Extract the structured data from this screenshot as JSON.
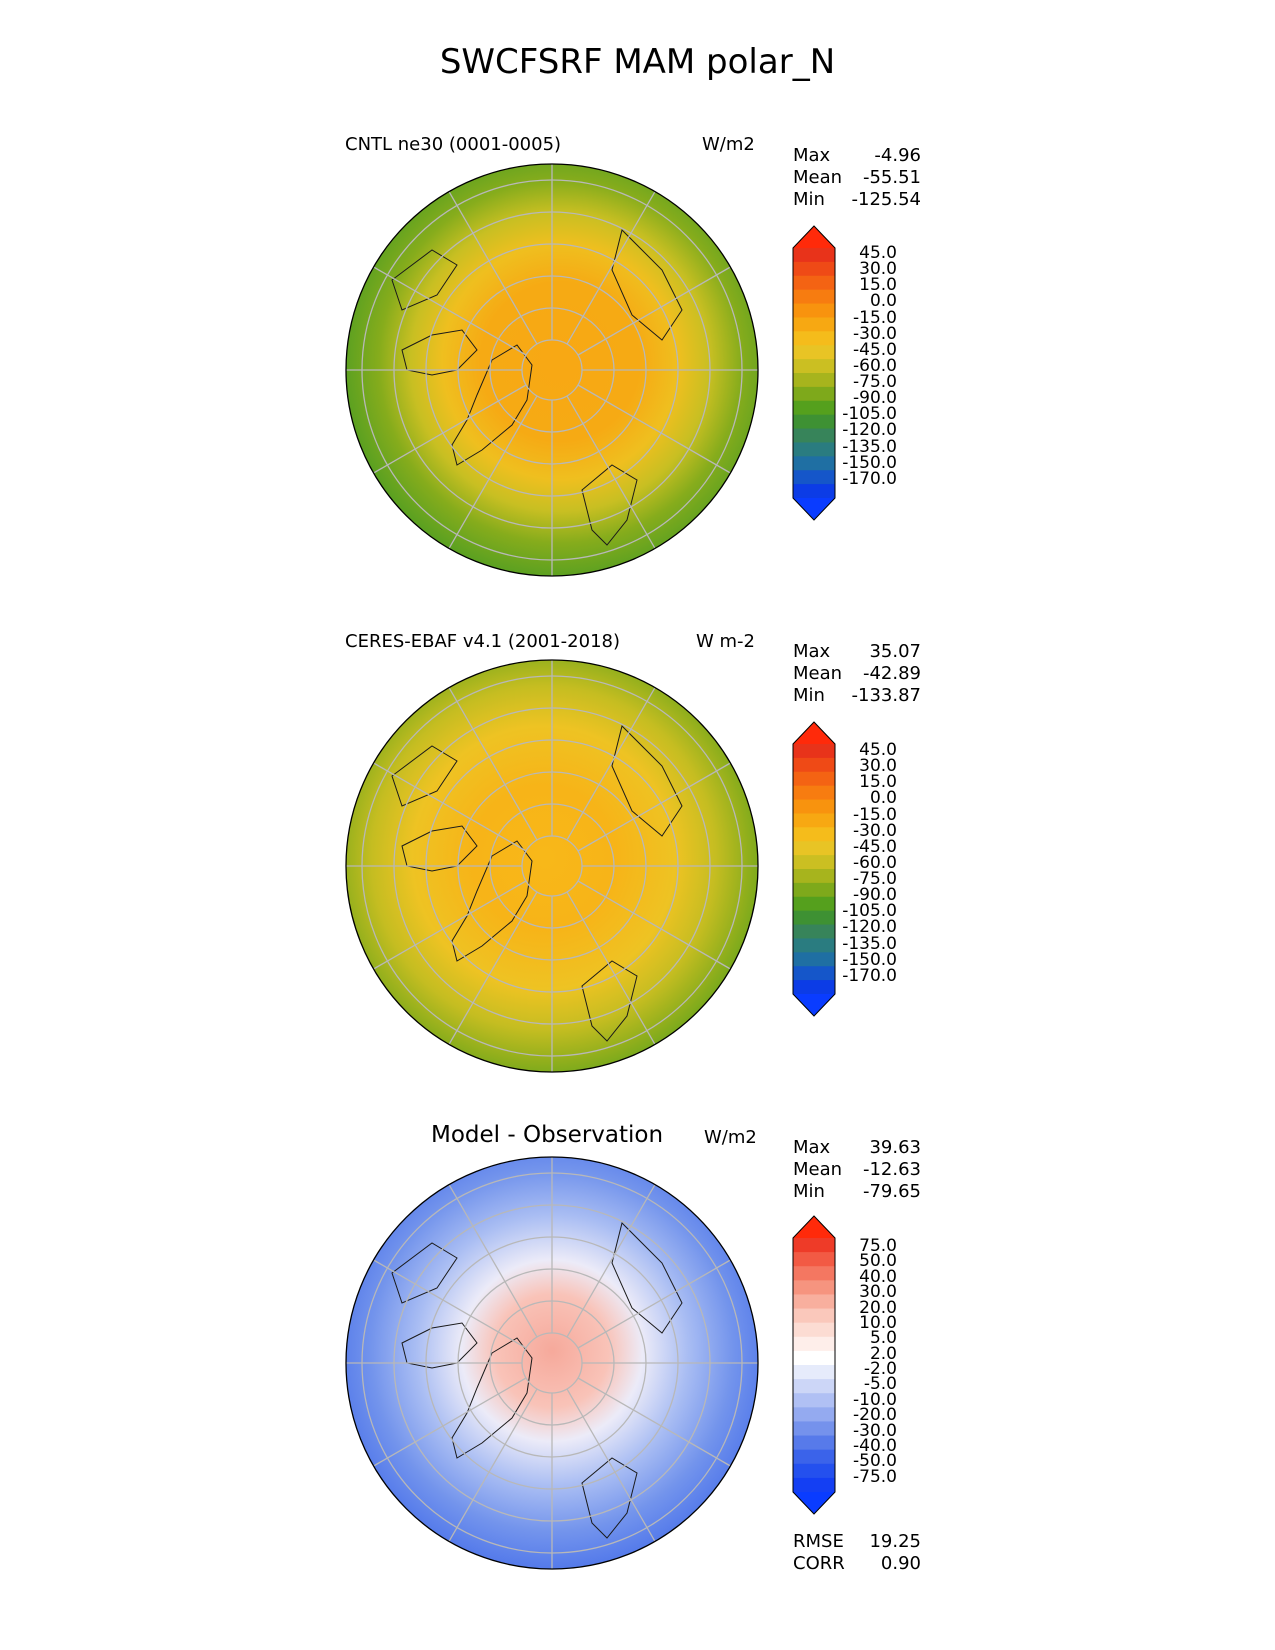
{
  "title": "SWCFSRF MAM polar_N",
  "panels": [
    {
      "title": "CNTL ne30 (0001-0005)",
      "units": "W/m2",
      "stats": [
        {
          "label": "Max",
          "value": "-4.96"
        },
        {
          "label": "Mean",
          "value": "-55.51"
        },
        {
          "label": "Min",
          "value": "-125.54"
        }
      ],
      "colorbar": {
        "labels": [
          "45.0",
          "30.0",
          "15.0",
          "0.0",
          "-15.0",
          "-30.0",
          "-45.0",
          "-60.0",
          "-75.0",
          "-90.0",
          "-105.0",
          "-120.0",
          "-135.0",
          "-150.0",
          "-170.0"
        ],
        "colors": [
          "#e8331a",
          "#ef4a16",
          "#f46313",
          "#f77c10",
          "#f8930e",
          "#f7a812",
          "#f5bc1b",
          "#e8c425",
          "#cbbf22",
          "#a7b41d",
          "#7ea91b",
          "#55a01d",
          "#3e9133",
          "#37845a",
          "#2a7c80",
          "#1f6fa3",
          "#1556c9",
          "#0c3ce6"
        ],
        "over_color": "#ff2a0a",
        "under_color": "#0a3cff"
      }
    },
    {
      "title": "CERES-EBAF v4.1 (2001-2018)",
      "units": "W m-2",
      "stats": [
        {
          "label": "Max",
          "value": "35.07"
        },
        {
          "label": "Mean",
          "value": "-42.89"
        },
        {
          "label": "Min",
          "value": "-133.87"
        }
      ],
      "colorbar": {
        "labels": [
          "45.0",
          "30.0",
          "15.0",
          "0.0",
          "-15.0",
          "-30.0",
          "-45.0",
          "-60.0",
          "-75.0",
          "-90.0",
          "-105.0",
          "-120.0",
          "-135.0",
          "-150.0",
          "-170.0"
        ],
        "colors": [
          "#e8331a",
          "#ef4a16",
          "#f46313",
          "#f77c10",
          "#f8930e",
          "#f7a812",
          "#f5bc1b",
          "#e8c425",
          "#cbbf22",
          "#a7b41d",
          "#7ea91b",
          "#55a01d",
          "#3e9133",
          "#37845a",
          "#2a7c80",
          "#1f6fa3",
          "#1556c9",
          "#0c3ce6"
        ],
        "over_color": "#ff2a0a",
        "under_color": "#0a3cff"
      }
    },
    {
      "title": "Model - Observation",
      "units": "W/m2",
      "stats": [
        {
          "label": "Max",
          "value": "39.63"
        },
        {
          "label": "Mean",
          "value": "-12.63"
        },
        {
          "label": "Min",
          "value": "-79.65"
        }
      ],
      "metrics": [
        {
          "label": "RMSE",
          "value": "19.25"
        },
        {
          "label": "CORR",
          "value": "0.90"
        }
      ],
      "colorbar": {
        "labels": [
          "75.0",
          "50.0",
          "40.0",
          "30.0",
          "20.0",
          "10.0",
          "5.0",
          "2.0",
          "-2.0",
          "-5.0",
          "-10.0",
          "-20.0",
          "-30.0",
          "-40.0",
          "-50.0",
          "-75.0"
        ],
        "colors": [
          "#ee3b28",
          "#f25a44",
          "#f47761",
          "#f6947f",
          "#f8af9e",
          "#fac8bb",
          "#fcdcd3",
          "#feeeea",
          "#ffffff",
          "#e6ebfb",
          "#ccd6f7",
          "#b0c0f4",
          "#94aaf0",
          "#7592ec",
          "#577aea",
          "#3b63ea",
          "#2450ee",
          "#143ff3"
        ],
        "over_color": "#ff2a0a",
        "under_color": "#0a3cff"
      }
    }
  ]
}
